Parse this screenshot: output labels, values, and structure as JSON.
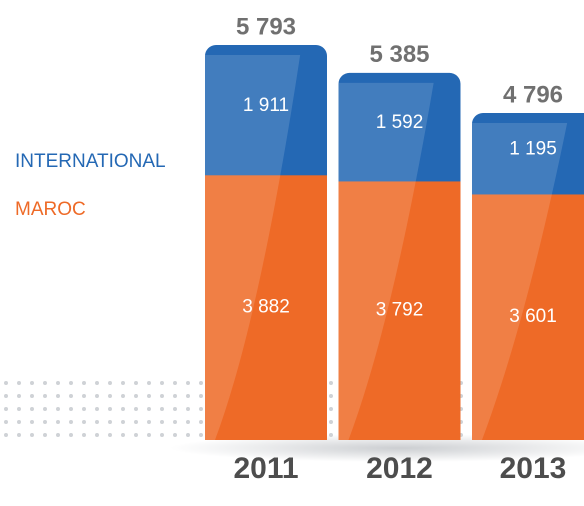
{
  "chart_data": {
    "type": "stacked_bar",
    "categories": [
      "2011",
      "2012",
      "2013"
    ],
    "series": [
      {
        "name": "MAROC",
        "color": "#ee6a27",
        "values": [
          3882,
          3792,
          3601
        ],
        "value_labels": [
          "3 882",
          "3 792",
          "3 601"
        ]
      },
      {
        "name": "INTERNATIONAL",
        "color": "#2468b4",
        "values": [
          1911,
          1592,
          1195
        ],
        "value_labels": [
          "1 911",
          "1 592",
          "1 195"
        ]
      }
    ],
    "totals": [
      5793,
      5385,
      4796
    ],
    "total_labels": [
      "5 793",
      "5 385",
      "4 796"
    ]
  }
}
